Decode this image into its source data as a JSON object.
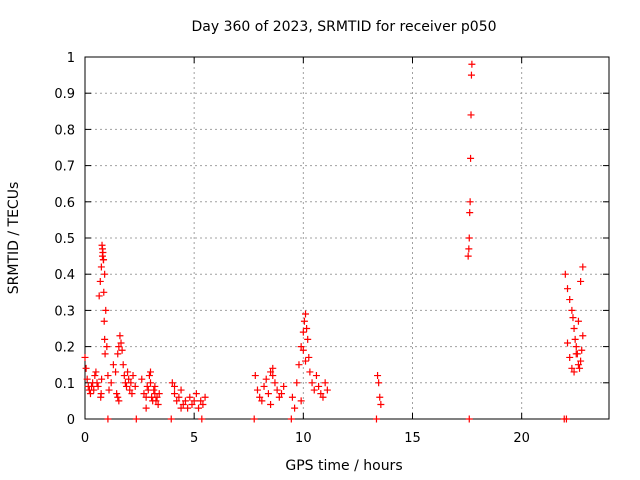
{
  "chart_data": {
    "type": "scatter",
    "title": "Day 360 of 2023, SRMTID for receiver p050",
    "xlabel": "GPS time / hours",
    "ylabel": "SRMTID / TECUs",
    "xlim": [
      0,
      24
    ],
    "ylim": [
      0,
      1
    ],
    "grid": true,
    "marker": "plus",
    "color": "#ff0000",
    "x_ticks": [
      0,
      5,
      10,
      15,
      20
    ],
    "y_ticks": [
      0,
      0.1,
      0.2,
      0.3,
      0.4,
      0.5,
      0.6,
      0.7,
      0.8,
      0.9,
      1
    ],
    "x_tick_labels": [
      "0",
      "5",
      "10",
      "15",
      "20"
    ],
    "y_tick_labels": [
      "0",
      "0.1",
      "0.2",
      "0.3",
      "0.4",
      "0.5",
      "0.6",
      "0.7",
      "0.8",
      "0.9",
      "1"
    ],
    "series": [
      {
        "name": "SRMTID",
        "x": [
          0.0,
          0.05,
          0.1,
          0.15,
          0.2,
          0.25,
          0.3,
          0.35,
          0.4,
          0.45,
          0.5,
          0.55,
          0.6,
          0.65,
          0.7,
          0.75,
          0.8,
          0.85,
          0.9,
          0.95,
          1.0,
          1.05,
          1.1,
          0.78,
          0.8,
          0.82,
          0.84,
          0.86,
          0.88,
          0.9,
          0.92,
          0.76,
          0.74,
          0.72,
          1.2,
          1.3,
          1.4,
          1.5,
          1.55,
          1.6,
          1.65,
          1.7,
          1.75,
          1.8,
          1.85,
          1.9,
          1.95,
          2.0,
          2.05,
          2.1,
          2.15,
          2.2,
          2.3,
          1.45,
          1.5,
          1.55,
          2.6,
          2.7,
          2.8,
          2.85,
          2.9,
          2.95,
          3.0,
          3.05,
          3.1,
          3.15,
          3.2,
          3.25,
          3.3,
          3.35,
          3.4,
          2.8,
          3.0,
          3.2,
          4.0,
          4.1,
          4.2,
          4.3,
          4.4,
          4.5,
          4.6,
          4.7,
          4.8,
          4.9,
          5.0,
          5.1,
          5.2,
          5.3,
          5.4,
          5.5,
          4.1,
          4.4,
          7.8,
          7.9,
          8.0,
          8.1,
          8.2,
          8.3,
          8.4,
          8.5,
          8.6,
          8.7,
          8.8,
          8.9,
          9.0,
          9.1,
          8.5,
          8.6,
          9.5,
          9.6,
          9.7,
          9.8,
          9.9,
          10.0,
          10.05,
          10.1,
          10.15,
          10.2,
          10.25,
          10.3,
          10.4,
          10.5,
          10.6,
          10.7,
          10.8,
          10.9,
          11.0,
          11.1,
          9.9,
          10.0,
          10.1,
          13.4,
          13.45,
          13.5,
          13.55,
          17.55,
          17.58,
          17.6,
          17.62,
          17.64,
          17.66,
          17.68,
          17.7,
          17.72,
          22.0,
          22.1,
          22.2,
          22.3,
          22.35,
          22.4,
          22.45,
          22.5,
          22.55,
          22.6,
          22.65,
          22.7,
          22.75,
          22.8,
          22.1,
          22.2,
          22.3,
          22.4,
          22.5,
          22.6,
          22.7,
          22.8,
          1.05,
          2.35,
          3.95,
          5.35,
          7.75,
          9.45,
          13.35,
          17.6,
          21.95,
          22.05
        ],
        "y": [
          0.17,
          0.14,
          0.11,
          0.09,
          0.08,
          0.07,
          0.09,
          0.1,
          0.08,
          0.12,
          0.13,
          0.1,
          0.09,
          0.34,
          0.38,
          0.42,
          0.45,
          0.44,
          0.4,
          0.3,
          0.2,
          0.12,
          0.08,
          0.48,
          0.47,
          0.46,
          0.44,
          0.35,
          0.27,
          0.22,
          0.18,
          0.11,
          0.07,
          0.06,
          0.1,
          0.15,
          0.13,
          0.18,
          0.2,
          0.23,
          0.21,
          0.19,
          0.15,
          0.12,
          0.1,
          0.09,
          0.13,
          0.11,
          0.08,
          0.1,
          0.07,
          0.12,
          0.09,
          0.07,
          0.06,
          0.05,
          0.11,
          0.07,
          0.06,
          0.09,
          0.08,
          0.12,
          0.1,
          0.06,
          0.05,
          0.08,
          0.07,
          0.05,
          0.06,
          0.04,
          0.07,
          0.03,
          0.13,
          0.09,
          0.1,
          0.07,
          0.05,
          0.06,
          0.08,
          0.04,
          0.05,
          0.03,
          0.06,
          0.04,
          0.05,
          0.07,
          0.03,
          0.05,
          0.04,
          0.06,
          0.09,
          0.03,
          0.12,
          0.08,
          0.06,
          0.05,
          0.09,
          0.11,
          0.07,
          0.13,
          0.14,
          0.1,
          0.08,
          0.06,
          0.07,
          0.09,
          0.04,
          0.12,
          0.06,
          0.03,
          0.1,
          0.15,
          0.2,
          0.24,
          0.27,
          0.29,
          0.25,
          0.22,
          0.17,
          0.13,
          0.1,
          0.08,
          0.12,
          0.09,
          0.07,
          0.06,
          0.1,
          0.08,
          0.05,
          0.19,
          0.16,
          0.12,
          0.1,
          0.06,
          0.04,
          0.45,
          0.47,
          0.5,
          0.57,
          0.6,
          0.72,
          0.84,
          0.95,
          0.98,
          0.4,
          0.36,
          0.33,
          0.3,
          0.28,
          0.25,
          0.22,
          0.2,
          0.18,
          0.15,
          0.14,
          0.16,
          0.19,
          0.23,
          0.21,
          0.17,
          0.14,
          0.13,
          0.18,
          0.27,
          0.38,
          0.42,
          0,
          0,
          0,
          0,
          0,
          0,
          0,
          0,
          0,
          0
        ]
      }
    ]
  }
}
